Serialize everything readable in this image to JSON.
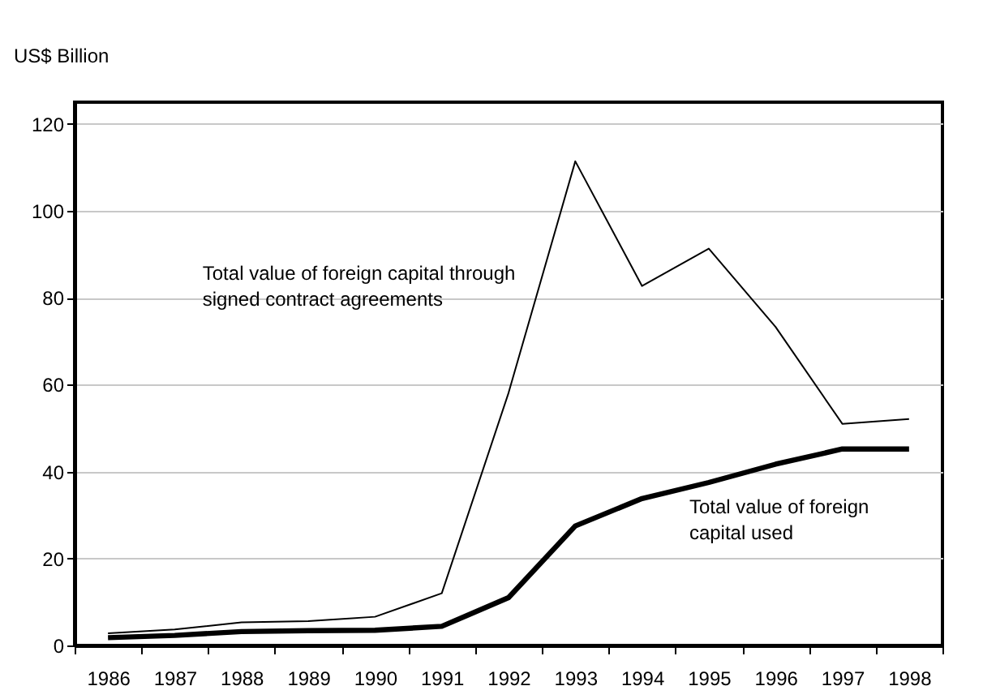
{
  "chart_data": {
    "type": "line",
    "ylabel": "US$ Billion",
    "categories": [
      "1986",
      "1987",
      "1988",
      "1989",
      "1990",
      "1991",
      "1992",
      "1993",
      "1994",
      "1995",
      "1996",
      "1997",
      "1998"
    ],
    "series": [
      {
        "name": "Total value of foreign capital through signed contract agreements",
        "color": "#000000",
        "values": [
          2.8,
          3.7,
          5.3,
          5.6,
          6.6,
          12.0,
          58.1,
          111.4,
          82.7,
          91.3,
          73.3,
          51.0,
          52.1
        ]
      },
      {
        "name": "Total value of foreign capital used",
        "color": "#000000",
        "values": [
          1.8,
          2.3,
          3.2,
          3.4,
          3.5,
          4.4,
          11.0,
          27.5,
          33.8,
          37.5,
          41.7,
          45.2,
          45.2
        ]
      }
    ],
    "ylim": [
      0,
      125
    ],
    "yticks": [
      0,
      20,
      40,
      60,
      80,
      100,
      120
    ],
    "grid": "y",
    "marker": "none",
    "line_style": "solid"
  }
}
